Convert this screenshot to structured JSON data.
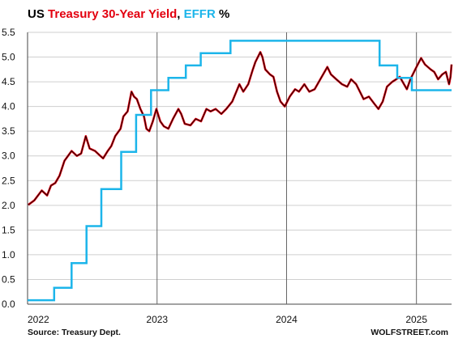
{
  "chart_data": {
    "type": "line",
    "title_parts": [
      {
        "text": "US ",
        "color": "#000000"
      },
      {
        "text": "Treasury 30-Year Yield",
        "color": "#e3000f"
      },
      {
        "text": ", ",
        "color": "#000000"
      },
      {
        "text": "EFFR",
        "color": "#1cb5ea"
      },
      {
        "text": " %",
        "color": "#000000"
      }
    ],
    "x_range": [
      "2022-01-01",
      "2025-04-10"
    ],
    "x_ticks": [
      "2022",
      "2023",
      "2024",
      "2025"
    ],
    "ylim": [
      0,
      5.5
    ],
    "y_ticks": [
      "0.0",
      "0.5",
      "1.0",
      "1.5",
      "2.0",
      "2.5",
      "3.0",
      "3.5",
      "4.0",
      "4.5",
      "5.0",
      "5.5"
    ],
    "grid": "horizontal-and-year-lines",
    "series": [
      {
        "name": "Treasury 30-Year Yield",
        "color": "#e3000f",
        "style": "line",
        "points": [
          [
            "2022-01-03",
            2.01
          ],
          [
            "2022-01-20",
            2.1
          ],
          [
            "2022-02-10",
            2.3
          ],
          [
            "2022-02-25",
            2.2
          ],
          [
            "2022-03-08",
            2.4
          ],
          [
            "2022-03-20",
            2.45
          ],
          [
            "2022-04-01",
            2.6
          ],
          [
            "2022-04-15",
            2.9
          ],
          [
            "2022-04-25",
            3.0
          ],
          [
            "2022-05-05",
            3.1
          ],
          [
            "2022-05-20",
            3.0
          ],
          [
            "2022-06-01",
            3.05
          ],
          [
            "2022-06-14",
            3.4
          ],
          [
            "2022-06-25",
            3.15
          ],
          [
            "2022-07-10",
            3.1
          ],
          [
            "2022-07-25",
            3.0
          ],
          [
            "2022-08-02",
            2.95
          ],
          [
            "2022-08-15",
            3.1
          ],
          [
            "2022-08-25",
            3.2
          ],
          [
            "2022-09-05",
            3.4
          ],
          [
            "2022-09-20",
            3.55
          ],
          [
            "2022-09-28",
            3.8
          ],
          [
            "2022-10-10",
            3.9
          ],
          [
            "2022-10-21",
            4.3
          ],
          [
            "2022-10-28",
            4.2
          ],
          [
            "2022-11-05",
            4.15
          ],
          [
            "2022-11-15",
            3.95
          ],
          [
            "2022-11-25",
            3.8
          ],
          [
            "2022-12-02",
            3.55
          ],
          [
            "2022-12-10",
            3.5
          ],
          [
            "2022-12-20",
            3.7
          ],
          [
            "2022-12-30",
            3.95
          ],
          [
            "2023-01-10",
            3.7
          ],
          [
            "2023-01-20",
            3.6
          ],
          [
            "2023-02-02",
            3.55
          ],
          [
            "2023-02-15",
            3.75
          ],
          [
            "2023-03-02",
            3.95
          ],
          [
            "2023-03-10",
            3.85
          ],
          [
            "2023-03-20",
            3.65
          ],
          [
            "2023-04-05",
            3.62
          ],
          [
            "2023-04-20",
            3.75
          ],
          [
            "2023-05-05",
            3.7
          ],
          [
            "2023-05-20",
            3.95
          ],
          [
            "2023-06-01",
            3.9
          ],
          [
            "2023-06-15",
            3.95
          ],
          [
            "2023-07-01",
            3.85
          ],
          [
            "2023-07-15",
            3.95
          ],
          [
            "2023-08-01",
            4.1
          ],
          [
            "2023-08-21",
            4.45
          ],
          [
            "2023-09-01",
            4.3
          ],
          [
            "2023-09-15",
            4.45
          ],
          [
            "2023-09-28",
            4.75
          ],
          [
            "2023-10-05",
            4.9
          ],
          [
            "2023-10-19",
            5.1
          ],
          [
            "2023-10-25",
            5.0
          ],
          [
            "2023-11-02",
            4.75
          ],
          [
            "2023-11-15",
            4.65
          ],
          [
            "2023-11-25",
            4.6
          ],
          [
            "2023-12-05",
            4.3
          ],
          [
            "2023-12-15",
            4.1
          ],
          [
            "2023-12-27",
            4.0
          ],
          [
            "2024-01-10",
            4.2
          ],
          [
            "2024-01-25",
            4.35
          ],
          [
            "2024-02-05",
            4.3
          ],
          [
            "2024-02-20",
            4.45
          ],
          [
            "2024-03-05",
            4.3
          ],
          [
            "2024-03-20",
            4.35
          ],
          [
            "2024-04-05",
            4.55
          ],
          [
            "2024-04-25",
            4.8
          ],
          [
            "2024-05-05",
            4.65
          ],
          [
            "2024-05-20",
            4.55
          ],
          [
            "2024-06-05",
            4.45
          ],
          [
            "2024-06-20",
            4.4
          ],
          [
            "2024-07-01",
            4.55
          ],
          [
            "2024-07-15",
            4.45
          ],
          [
            "2024-08-05",
            4.15
          ],
          [
            "2024-08-20",
            4.2
          ],
          [
            "2024-09-05",
            4.05
          ],
          [
            "2024-09-16",
            3.95
          ],
          [
            "2024-09-28",
            4.1
          ],
          [
            "2024-10-10",
            4.4
          ],
          [
            "2024-10-25",
            4.5
          ],
          [
            "2024-11-05",
            4.55
          ],
          [
            "2024-11-15",
            4.6
          ],
          [
            "2024-12-05",
            4.35
          ],
          [
            "2024-12-15",
            4.55
          ],
          [
            "2025-01-01",
            4.8
          ],
          [
            "2025-01-14",
            4.98
          ],
          [
            "2025-01-25",
            4.85
          ],
          [
            "2025-02-10",
            4.75
          ],
          [
            "2025-02-20",
            4.7
          ],
          [
            "2025-03-03",
            4.55
          ],
          [
            "2025-03-15",
            4.65
          ],
          [
            "2025-03-25",
            4.7
          ],
          [
            "2025-04-03",
            4.45
          ],
          [
            "2025-04-07",
            4.6
          ],
          [
            "2025-04-10",
            4.85
          ]
        ]
      },
      {
        "name": "EFFR",
        "color": "#1cb5ea",
        "style": "step",
        "points": [
          [
            "2022-01-01",
            0.08
          ],
          [
            "2022-03-17",
            0.33
          ],
          [
            "2022-05-05",
            0.83
          ],
          [
            "2022-06-16",
            1.58
          ],
          [
            "2022-07-28",
            2.33
          ],
          [
            "2022-09-22",
            3.08
          ],
          [
            "2022-11-03",
            3.83
          ],
          [
            "2022-12-15",
            4.33
          ],
          [
            "2023-02-02",
            4.58
          ],
          [
            "2023-03-23",
            4.83
          ],
          [
            "2023-05-04",
            5.08
          ],
          [
            "2023-07-27",
            5.33
          ],
          [
            "2024-09-19",
            4.83
          ],
          [
            "2024-11-08",
            4.58
          ],
          [
            "2024-12-19",
            4.33
          ],
          [
            "2025-04-10",
            4.33
          ]
        ]
      }
    ],
    "footer_left": "Source: Treasury Dept.",
    "footer_right": "WOLFSTREET.com"
  }
}
